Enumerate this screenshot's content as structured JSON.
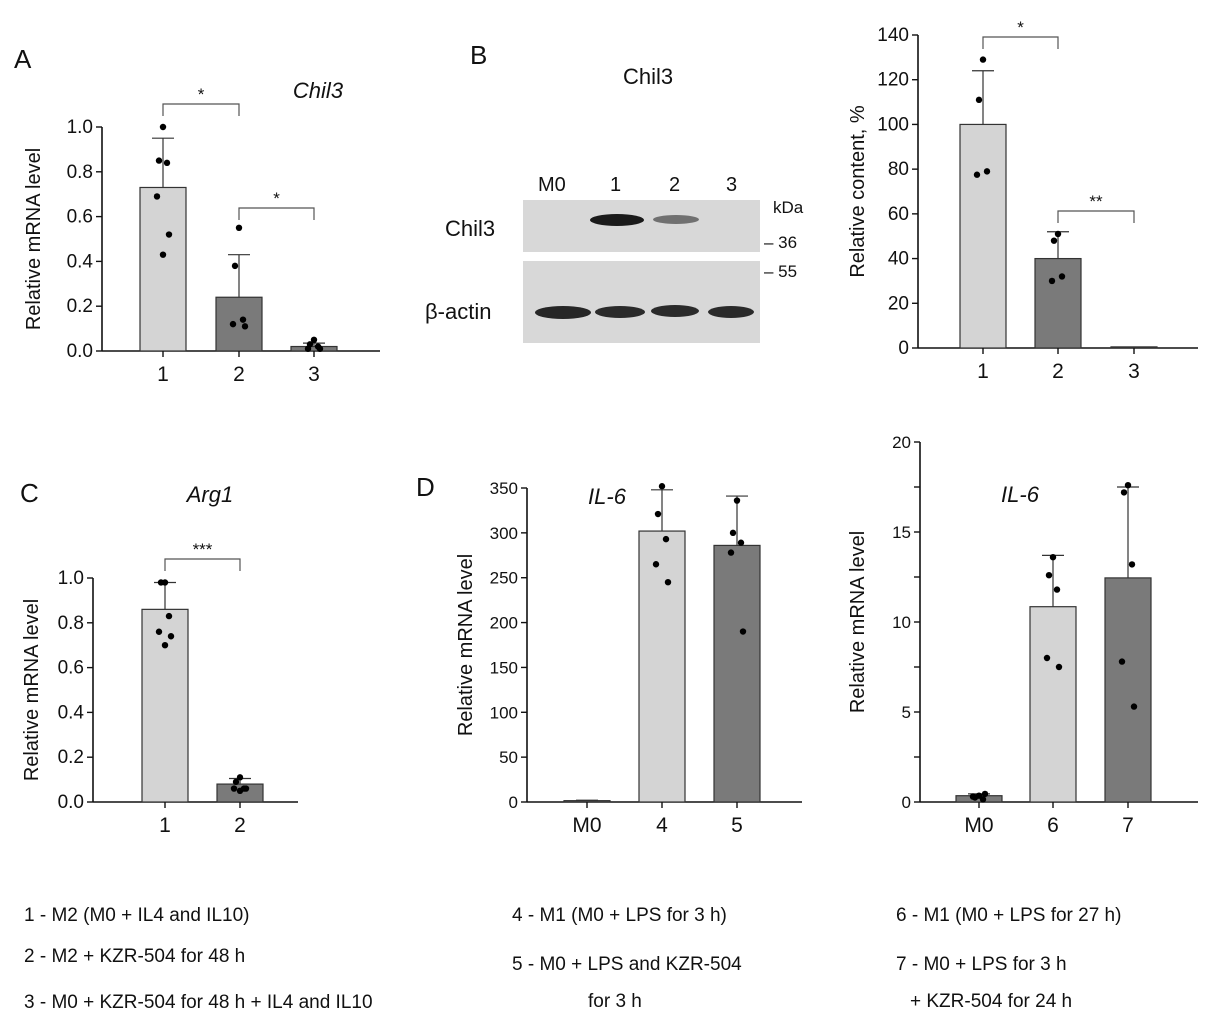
{
  "panels": {
    "A": "A",
    "B": "B",
    "C": "C",
    "D": "D"
  },
  "chart_data": [
    {
      "id": "A",
      "type": "bar",
      "title": "Chil3",
      "title_italic": true,
      "xlabel": "",
      "ylabel": "Relative mRNA level",
      "categories": [
        "1",
        "2",
        "3"
      ],
      "values": [
        0.73,
        0.24,
        0.02
      ],
      "errors": [
        0.22,
        0.19,
        0.015
      ],
      "points": [
        [
          1.0,
          0.85,
          0.84,
          0.69,
          0.52,
          0.43
        ],
        [
          0.55,
          0.38,
          0.14,
          0.12,
          0.11
        ],
        [
          0.05,
          0.03,
          0.02,
          0.01,
          0.01
        ]
      ],
      "bar_colors": [
        "#d4d4d4",
        "#7a7a7a",
        "#7a7a7a"
      ],
      "ylim": [
        0,
        1.0
      ],
      "yticks": [
        0.0,
        0.2,
        0.4,
        0.6,
        0.8,
        1.0
      ],
      "ytick_labels": [
        "0.0",
        "0.2",
        "0.4",
        "0.6",
        "0.8",
        "1.0"
      ],
      "significance": [
        {
          "from": 0,
          "to": 1,
          "label": "*"
        },
        {
          "from": 1,
          "to": 2,
          "label": "*"
        }
      ]
    },
    {
      "id": "B-quant",
      "type": "bar",
      "title": "",
      "xlabel": "",
      "ylabel": "Relative content, %",
      "categories": [
        "1",
        "2",
        "3"
      ],
      "values": [
        100,
        40,
        0.5
      ],
      "errors": [
        24,
        12,
        0
      ],
      "points": [
        [
          129,
          111,
          79,
          77.5
        ],
        [
          51,
          48,
          32,
          30
        ],
        []
      ],
      "bar_colors": [
        "#d4d4d4",
        "#7a7a7a",
        "#7a7a7a"
      ],
      "ylim": [
        0,
        140
      ],
      "yticks": [
        0,
        20,
        40,
        60,
        80,
        100,
        120,
        140
      ],
      "ytick_labels": [
        "0",
        "20",
        "40",
        "60",
        "80",
        "100",
        "120",
        "140"
      ],
      "significance": [
        {
          "from": 0,
          "to": 1,
          "label": "*"
        },
        {
          "from": 1,
          "to": 2,
          "label": "**"
        }
      ]
    },
    {
      "id": "C",
      "type": "bar",
      "title": "Arg1",
      "title_italic": true,
      "xlabel": "",
      "ylabel": "Relative mRNA level",
      "categories": [
        "1",
        "2"
      ],
      "values": [
        0.86,
        0.08
      ],
      "errors": [
        0.12,
        0.025
      ],
      "points": [
        [
          0.98,
          0.98,
          0.83,
          0.76,
          0.74,
          0.7
        ],
        [
          0.11,
          0.09,
          0.06,
          0.06,
          0.06,
          0.05
        ]
      ],
      "bar_colors": [
        "#d4d4d4",
        "#7a7a7a"
      ],
      "ylim": [
        0,
        1.0
      ],
      "yticks": [
        0.0,
        0.2,
        0.4,
        0.6,
        0.8,
        1.0
      ],
      "ytick_labels": [
        "0.0",
        "0.2",
        "0.4",
        "0.6",
        "0.8",
        "1.0"
      ],
      "significance": [
        {
          "from": 0,
          "to": 1,
          "label": "***"
        }
      ]
    },
    {
      "id": "D-left",
      "type": "bar",
      "title": "IL-6",
      "title_italic": true,
      "xlabel": "",
      "ylabel": "Relative mRNA level",
      "categories": [
        "M0",
        "4",
        "5"
      ],
      "values": [
        1.5,
        302,
        286
      ],
      "errors": [
        0.5,
        46,
        55
      ],
      "points": [
        [],
        [
          352,
          321,
          293,
          265,
          245
        ],
        [
          336,
          300,
          289,
          278,
          190
        ]
      ],
      "bar_colors": [
        "#7a7a7a",
        "#d4d4d4",
        "#7a7a7a"
      ],
      "ylim": [
        0,
        350
      ],
      "yticks": [
        0,
        50,
        100,
        150,
        200,
        250,
        300,
        350
      ],
      "ytick_labels": [
        "0",
        "50",
        "100",
        "150",
        "200",
        "250",
        "300",
        "350"
      ],
      "significance": []
    },
    {
      "id": "D-right",
      "type": "bar",
      "title": "IL-6",
      "title_italic": true,
      "xlabel": "",
      "ylabel": "Relative mRNA level",
      "categories": [
        "M0",
        "6",
        "7"
      ],
      "values": [
        0.35,
        10.85,
        12.45
      ],
      "errors": [
        0.1,
        2.85,
        5.05
      ],
      "points": [
        [
          0.35,
          0.25,
          0.15,
          0.3,
          0.45
        ],
        [
          13.6,
          12.6,
          11.8,
          8.0,
          7.5
        ],
        [
          17.6,
          17.2,
          13.2,
          7.8,
          5.3
        ]
      ],
      "bar_colors": [
        "#7a7a7a",
        "#d4d4d4",
        "#7a7a7a"
      ],
      "ylim": [
        0,
        20
      ],
      "yticks": [
        0,
        2.5,
        5,
        7.5,
        10,
        12.5,
        15,
        17.5,
        20
      ],
      "ytick_labels": [
        "0",
        "",
        "5",
        "",
        "10",
        "",
        "15",
        "",
        "20"
      ],
      "significance": []
    }
  ],
  "western_blot": {
    "title": "Chil3",
    "lanes": [
      "M0",
      "1",
      "2",
      "3"
    ],
    "rows": [
      "Chil3",
      "β-actin"
    ],
    "unit": "kDa",
    "markers": [
      "– 36",
      "– 55"
    ],
    "chil3_band_intensity": [
      0,
      1.0,
      0.45,
      0.02
    ],
    "actin_band_intensity": [
      1.0,
      1.0,
      1.0,
      1.0
    ]
  },
  "legend": {
    "col1": [
      "1 -  M2 (M0 + IL4 and IL10)",
      "2 -  M2 +  KZR-504 for 48 h",
      "3 -  M0 + KZR-504 for 48 h + IL4 and IL10"
    ],
    "col2": [
      "4 - M1 (M0 + LPS for 3 h)",
      "5 - M0 + LPS and KZR-504",
      "for 3 h"
    ],
    "col3": [
      "6 - M1 (M0 + LPS for 27 h)",
      "7 - M0 + LPS for 3  h",
      "+ KZR-504 for 24 h"
    ]
  }
}
